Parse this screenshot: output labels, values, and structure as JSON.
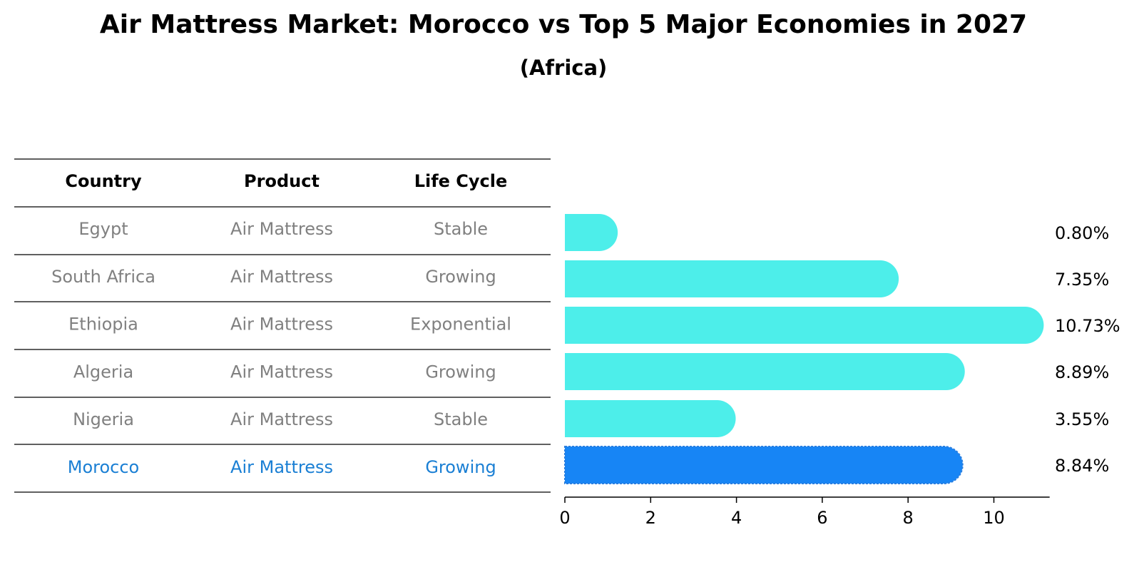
{
  "header": {
    "title": "Air Mattress Market: Morocco vs Top 5 Major Economies in 2027",
    "subtitle": "(Africa)"
  },
  "table": {
    "columns": [
      "Country",
      "Product",
      "Life Cycle"
    ],
    "rows": [
      [
        "Egypt",
        "Air Mattress",
        "Stable"
      ],
      [
        "South Africa",
        "Air Mattress",
        "Growing"
      ],
      [
        "Ethiopia",
        "Air Mattress",
        "Exponential"
      ],
      [
        "Algeria",
        "Air Mattress",
        "Growing"
      ],
      [
        "Nigeria",
        "Air Mattress",
        "Stable"
      ],
      [
        "Morocco",
        "Air Mattress",
        "Growing"
      ]
    ],
    "highlight_row": 5
  },
  "chart_data": {
    "type": "bar",
    "orientation": "horizontal",
    "categories": [
      "Egypt",
      "South Africa",
      "Ethiopia",
      "Algeria",
      "Nigeria",
      "Morocco"
    ],
    "values": [
      0.8,
      7.35,
      10.73,
      8.89,
      3.55,
      8.84
    ],
    "value_labels": [
      "0.80%",
      "7.35%",
      "10.73%",
      "8.89%",
      "3.55%",
      "8.84%"
    ],
    "xlim": [
      0,
      11.3
    ],
    "xticks": [
      0,
      2,
      4,
      6,
      8,
      10
    ],
    "xlabel": "",
    "ylabel": "",
    "grid": false,
    "highlight_category": "Morocco"
  },
  "colors": {
    "bar_default": "#4deeea",
    "bar_highlight": "#1785f5",
    "text_muted": "#808080",
    "text_highlight": "#1a7fd4",
    "text_header": "#000000",
    "rule": "#000000"
  }
}
